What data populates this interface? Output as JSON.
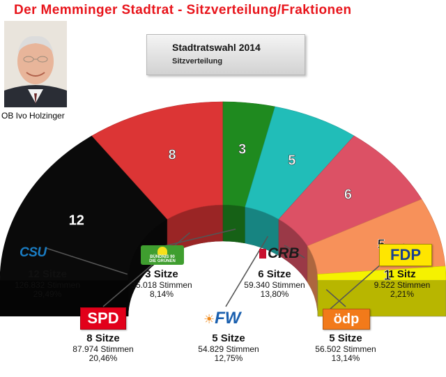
{
  "title": "Der Memminger Stadtrat - Sitzverteilung/Fraktionen",
  "photo_caption": "OB Ivo Holzinger",
  "header": {
    "title": "Stadtratswahl 2014",
    "subtitle": "Sitzverteilung"
  },
  "chart_data": {
    "type": "pie",
    "layout": "semicircle-3d",
    "title": "Stadtratswahl 2014",
    "subtitle": "Sitzverteilung",
    "categories": [
      "CSU",
      "SPD",
      "Bündnis 90 / Die Grünen",
      "FW",
      "CRB",
      "ödp",
      "FDP"
    ],
    "values": [
      12,
      8,
      3,
      5,
      6,
      5,
      1
    ],
    "colors": {
      "CSU": "#0a0a0a",
      "SPD": "#dc3535",
      "Gruene": "#1f8a1f",
      "FW": "#21bdb8",
      "CRB": "#dc5165",
      "oedp": "#f7915a",
      "FDP": "#f5f200"
    },
    "labels": [
      "12",
      "8",
      "3",
      "5",
      "6",
      "5",
      "1"
    ]
  },
  "parties": [
    {
      "logo": "CSU",
      "seats": "12 Sitze",
      "votes": "126.832 Stimmen",
      "pct": "29,49%"
    },
    {
      "logo": "SPD",
      "seats": "8 Sitze",
      "votes": "87.974 Stimmen",
      "pct": "20,46%"
    },
    {
      "logo_line1": "BÜNDNIS 90",
      "logo_line2": "DIE GRÜNEN",
      "seats": "3 Sitze",
      "votes": "35.018 Stimmen",
      "pct": "8,14%"
    },
    {
      "logo": "FW",
      "seats": "5 Sitze",
      "votes": "54.829 Stimmen",
      "pct": "12,75%"
    },
    {
      "logo": "CRB",
      "seats": "6 Sitze",
      "votes": "59.340 Stimmen",
      "pct": "13,80%"
    },
    {
      "logo": "ödp",
      "seats": "5 Sitze",
      "votes": "56.502 Stimmen",
      "pct": "13,14%"
    },
    {
      "logo": "FDP",
      "seats": "1 Sitz",
      "votes": "9.522 Stimmen",
      "pct": "2,21%"
    }
  ]
}
